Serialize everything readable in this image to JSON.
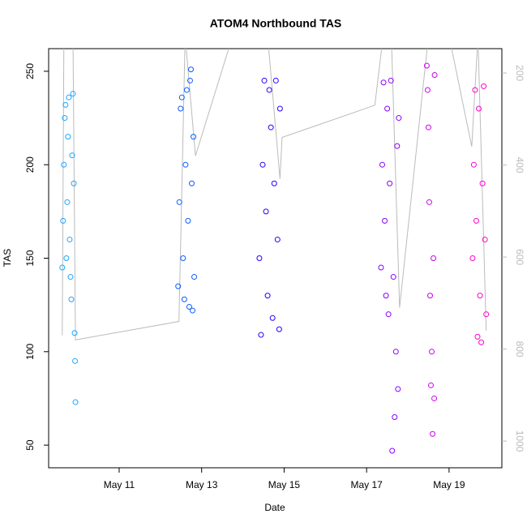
{
  "chart_data": {
    "type": "scatter",
    "title": "ATOM4 Northbound TAS",
    "x_label": "Date",
    "y_label": "TAS",
    "xlim": [
      9.29,
      20.28
    ],
    "xticks": [
      {
        "value": 11,
        "label": "May 11"
      },
      {
        "value": 13,
        "label": "May 13"
      },
      {
        "value": 15,
        "label": "May 15"
      },
      {
        "value": 17,
        "label": "May 17"
      },
      {
        "value": 19,
        "label": "May 19"
      }
    ],
    "ylim": [
      37.9,
      262.1
    ],
    "yticks": [
      50,
      100,
      150,
      200,
      250
    ],
    "y2lim": [
      1058,
      147
    ],
    "y2ticks": [
      200,
      400,
      600,
      800,
      1000
    ],
    "series": [
      {
        "color": "#1ca6ff",
        "x": [
          9.62,
          9.64,
          9.66,
          9.68,
          9.7,
          9.72,
          9.74,
          9.76,
          9.78,
          9.8,
          9.82,
          9.84,
          9.86,
          9.88,
          9.9,
          9.92,
          9.93,
          9.94
        ],
        "values": [
          145,
          170,
          200,
          225,
          232,
          150,
          180,
          215,
          236,
          160,
          140,
          128,
          205,
          238,
          190,
          110,
          95,
          73
        ]
      },
      {
        "color": "#0a5cff",
        "x": [
          12.43,
          12.46,
          12.49,
          12.52,
          12.55,
          12.58,
          12.61,
          12.64,
          12.67,
          12.7,
          12.72,
          12.74,
          12.76,
          12.78,
          12.8,
          12.82
        ],
        "values": [
          135,
          180,
          230,
          236,
          150,
          128,
          200,
          240,
          170,
          124,
          245,
          251,
          190,
          122,
          215,
          140
        ]
      },
      {
        "color": "#2200ff",
        "x": [
          14.4,
          14.44,
          14.48,
          14.52,
          14.56,
          14.6,
          14.64,
          14.68,
          14.72,
          14.76,
          14.8,
          14.84,
          14.88,
          14.9
        ],
        "values": [
          150,
          109,
          200,
          245,
          175,
          130,
          240,
          220,
          118,
          190,
          245,
          160,
          112,
          230
        ]
      },
      {
        "color": "#8a00ff",
        "x": [
          17.35,
          17.38,
          17.41,
          17.44,
          17.47,
          17.5,
          17.53,
          17.56,
          17.59,
          17.62,
          17.65,
          17.68,
          17.71,
          17.74,
          17.76,
          17.78
        ],
        "values": [
          145,
          200,
          244,
          170,
          130,
          230,
          120,
          190,
          245,
          47,
          140,
          65,
          100,
          210,
          80,
          225
        ]
      },
      {
        "color": "#cc00ee",
        "x": [
          18.46,
          18.48,
          18.5,
          18.52,
          18.54,
          18.56,
          18.58,
          18.6,
          18.62,
          18.64,
          18.65
        ],
        "values": [
          253,
          240,
          220,
          180,
          130,
          82,
          100,
          56,
          150,
          75,
          248
        ]
      },
      {
        "color": "#ff00cc",
        "x": [
          19.57,
          19.6,
          19.63,
          19.66,
          19.69,
          19.72,
          19.75,
          19.78,
          19.81,
          19.84,
          19.87,
          19.9
        ],
        "values": [
          150,
          200,
          240,
          170,
          108,
          230,
          130,
          105,
          190,
          242,
          160,
          120
        ]
      },
      {
        "color": "#bbbbbb",
        "axis": "y2",
        "x": [
          9.62,
          9.66,
          9.88,
          9.94,
          12.45,
          12.6,
          12.85,
          13.75,
          14.45,
          14.6,
          14.9,
          14.95,
          17.2,
          17.4,
          17.6,
          17.8,
          18.5,
          18.6,
          19.0,
          19.55,
          19.7,
          19.9
        ],
        "values": [
          770,
          120,
          120,
          780,
          740,
          120,
          380,
          120,
          120,
          120,
          430,
          340,
          270,
          120,
          120,
          710,
          120,
          120,
          120,
          360,
          120,
          760
        ]
      }
    ]
  }
}
